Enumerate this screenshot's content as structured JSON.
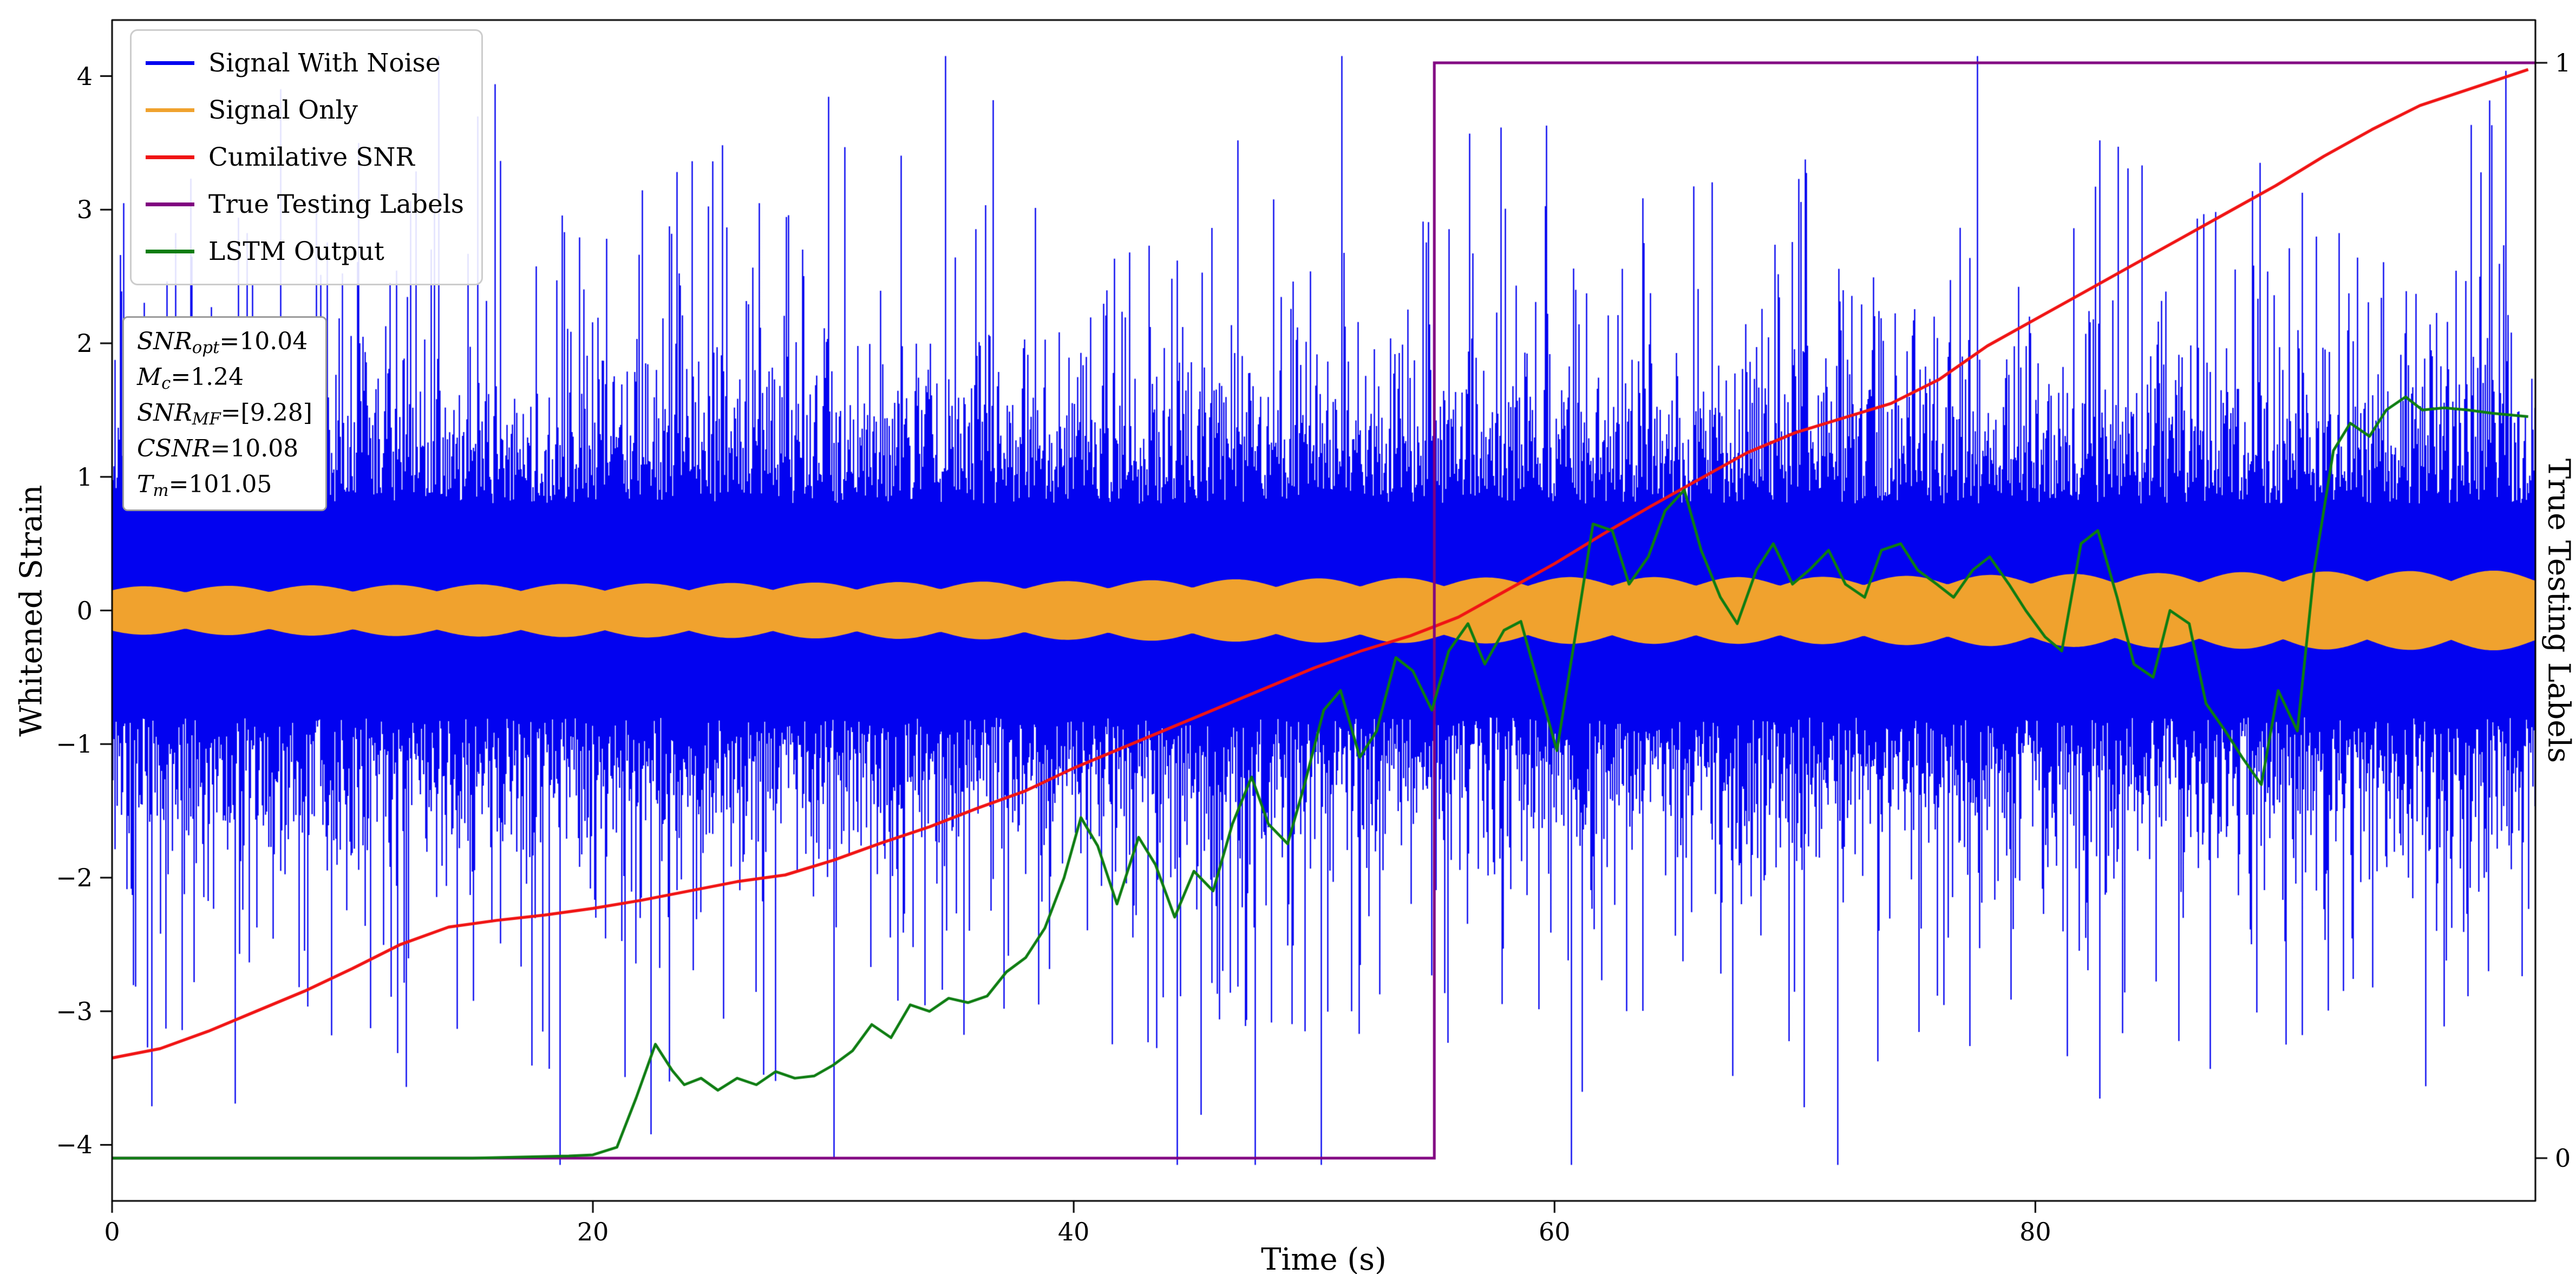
{
  "chart_data": {
    "type": "line",
    "title": "",
    "xlabel": "Time (s)",
    "ylabel_left": "Whitened Strain",
    "ylabel_right": "True Testing Labels",
    "xlim": [
      0,
      100.8
    ],
    "ylim_left": [
      -4.42,
      4.42
    ],
    "ylim_right_map": {
      "right0_at_left": -4.1,
      "right1_at_left": 4.1
    },
    "x_ticks": [
      0,
      20,
      40,
      60,
      80
    ],
    "y_ticks_left": [
      -4,
      -3,
      -2,
      -1,
      0,
      1,
      2,
      3,
      4
    ],
    "y_ticks_right": [
      0,
      1
    ],
    "grid": false,
    "legend_position": "upper left",
    "series": [
      {
        "name": "Signal With Noise",
        "color": "#0202f0",
        "type": "noise",
        "axis": "left",
        "seed": 1337,
        "base_amplitude": 0.8,
        "typical_amplitude": 1.4,
        "spike_probability": 0.09,
        "max_amplitude": 4.15
      },
      {
        "name": "Signal Only",
        "color": "#f0a22e",
        "type": "band",
        "axis": "left",
        "envelope": [
          [
            0,
            0.18
          ],
          [
            10,
            0.19
          ],
          [
            20,
            0.2
          ],
          [
            30,
            0.21
          ],
          [
            40,
            0.22
          ],
          [
            50,
            0.24
          ],
          [
            60,
            0.25
          ],
          [
            70,
            0.25
          ],
          [
            80,
            0.27
          ],
          [
            90,
            0.29
          ],
          [
            100.8,
            0.3
          ]
        ]
      },
      {
        "name": "Cumilative SNR",
        "color": "#f01414",
        "type": "line",
        "axis": "left",
        "points": [
          [
            0,
            -3.35
          ],
          [
            2,
            -3.28
          ],
          [
            4,
            -3.15
          ],
          [
            6,
            -3.0
          ],
          [
            8,
            -2.85
          ],
          [
            10,
            -2.68
          ],
          [
            12,
            -2.5
          ],
          [
            14,
            -2.37
          ],
          [
            16,
            -2.32
          ],
          [
            18,
            -2.28
          ],
          [
            20,
            -2.23
          ],
          [
            22,
            -2.17
          ],
          [
            24,
            -2.1
          ],
          [
            26,
            -2.03
          ],
          [
            28,
            -1.98
          ],
          [
            30,
            -1.87
          ],
          [
            32,
            -1.74
          ],
          [
            34,
            -1.62
          ],
          [
            36,
            -1.48
          ],
          [
            38,
            -1.35
          ],
          [
            40,
            -1.18
          ],
          [
            42,
            -1.03
          ],
          [
            44,
            -0.88
          ],
          [
            46,
            -0.73
          ],
          [
            48,
            -0.58
          ],
          [
            50,
            -0.43
          ],
          [
            52,
            -0.3
          ],
          [
            54,
            -0.19
          ],
          [
            56,
            -0.05
          ],
          [
            58,
            0.15
          ],
          [
            60,
            0.35
          ],
          [
            62,
            0.57
          ],
          [
            64,
            0.78
          ],
          [
            66,
            0.98
          ],
          [
            68,
            1.18
          ],
          [
            70,
            1.33
          ],
          [
            72,
            1.44
          ],
          [
            74,
            1.55
          ],
          [
            76,
            1.73
          ],
          [
            78,
            1.98
          ],
          [
            80,
            2.18
          ],
          [
            82,
            2.38
          ],
          [
            84,
            2.58
          ],
          [
            86,
            2.78
          ],
          [
            88,
            2.98
          ],
          [
            90,
            3.18
          ],
          [
            92,
            3.4
          ],
          [
            94,
            3.6
          ],
          [
            96,
            3.78
          ],
          [
            98,
            3.9
          ],
          [
            100.5,
            4.05
          ]
        ]
      },
      {
        "name": "True Testing Labels",
        "color": "#800080",
        "type": "step",
        "axis": "right",
        "step_time": 55,
        "low": 0,
        "high": 1
      },
      {
        "name": "LSTM Output",
        "color": "#0e7d12",
        "type": "line",
        "axis": "right",
        "points": [
          [
            0,
            0
          ],
          [
            5,
            0
          ],
          [
            10,
            0
          ],
          [
            15,
            0
          ],
          [
            19,
            0.002
          ],
          [
            20,
            0.003
          ],
          [
            21,
            0.01
          ],
          [
            21.8,
            0.055
          ],
          [
            22.6,
            0.104
          ],
          [
            23.3,
            0.08
          ],
          [
            23.8,
            0.067
          ],
          [
            24.5,
            0.073
          ],
          [
            25.2,
            0.062
          ],
          [
            26,
            0.073
          ],
          [
            26.8,
            0.067
          ],
          [
            27.6,
            0.079
          ],
          [
            28.4,
            0.073
          ],
          [
            29.2,
            0.075
          ],
          [
            30,
            0.085
          ],
          [
            30.8,
            0.098
          ],
          [
            31.6,
            0.122
          ],
          [
            32.4,
            0.11
          ],
          [
            33.2,
            0.14
          ],
          [
            34,
            0.134
          ],
          [
            34.8,
            0.146
          ],
          [
            35.6,
            0.142
          ],
          [
            36.4,
            0.148
          ],
          [
            37.2,
            0.17
          ],
          [
            38,
            0.183
          ],
          [
            38.8,
            0.21
          ],
          [
            39.6,
            0.256
          ],
          [
            40.3,
            0.311
          ],
          [
            41,
            0.285
          ],
          [
            41.8,
            0.232
          ],
          [
            42.7,
            0.293
          ],
          [
            43.4,
            0.268
          ],
          [
            44.2,
            0.22
          ],
          [
            45,
            0.262
          ],
          [
            45.8,
            0.244
          ],
          [
            46.6,
            0.305
          ],
          [
            47.4,
            0.348
          ],
          [
            48.1,
            0.305
          ],
          [
            48.9,
            0.287
          ],
          [
            49.6,
            0.341
          ],
          [
            50.4,
            0.409
          ],
          [
            51.1,
            0.427
          ],
          [
            51.9,
            0.366
          ],
          [
            52.6,
            0.39
          ],
          [
            53.4,
            0.457
          ],
          [
            54.1,
            0.445
          ],
          [
            54.9,
            0.409
          ],
          [
            55.6,
            0.463
          ],
          [
            56.4,
            0.488
          ],
          [
            57.1,
            0.451
          ],
          [
            57.9,
            0.482
          ],
          [
            58.6,
            0.49
          ],
          [
            59.4,
            0.427
          ],
          [
            60.1,
            0.372
          ],
          [
            60.9,
            0.482
          ],
          [
            61.6,
            0.579
          ],
          [
            62.4,
            0.573
          ],
          [
            63.1,
            0.524
          ],
          [
            63.9,
            0.549
          ],
          [
            64.6,
            0.591
          ],
          [
            65.4,
            0.61
          ],
          [
            66.1,
            0.555
          ],
          [
            66.9,
            0.512
          ],
          [
            67.6,
            0.488
          ],
          [
            68.4,
            0.537
          ],
          [
            69.1,
            0.561
          ],
          [
            69.9,
            0.524
          ],
          [
            70.6,
            0.537
          ],
          [
            71.4,
            0.555
          ],
          [
            72.1,
            0.524
          ],
          [
            72.9,
            0.512
          ],
          [
            73.6,
            0.555
          ],
          [
            74.4,
            0.561
          ],
          [
            75.1,
            0.537
          ],
          [
            75.9,
            0.524
          ],
          [
            76.6,
            0.512
          ],
          [
            77.4,
            0.537
          ],
          [
            78.1,
            0.549
          ],
          [
            78.9,
            0.524
          ],
          [
            79.6,
            0.5
          ],
          [
            80.4,
            0.476
          ],
          [
            81.1,
            0.463
          ],
          [
            81.9,
            0.561
          ],
          [
            82.6,
            0.573
          ],
          [
            83.4,
            0.512
          ],
          [
            84.1,
            0.451
          ],
          [
            84.9,
            0.439
          ],
          [
            85.6,
            0.5
          ],
          [
            86.4,
            0.488
          ],
          [
            87.1,
            0.415
          ],
          [
            87.9,
            0.39
          ],
          [
            88.6,
            0.366
          ],
          [
            89.4,
            0.341
          ],
          [
            90.1,
            0.427
          ],
          [
            90.9,
            0.39
          ],
          [
            91.6,
            0.537
          ],
          [
            92.4,
            0.646
          ],
          [
            93.1,
            0.671
          ],
          [
            93.9,
            0.659
          ],
          [
            94.6,
            0.683
          ],
          [
            95.4,
            0.695
          ],
          [
            96.1,
            0.683
          ],
          [
            97,
            0.685
          ],
          [
            98,
            0.683
          ],
          [
            99,
            0.68
          ],
          [
            100.5,
            0.677
          ]
        ]
      }
    ]
  },
  "annotation": {
    "lines": [
      {
        "base": "SNR",
        "sub": "opt",
        "rest": "=10.04"
      },
      {
        "base": "M",
        "sub": "c",
        "rest": "=1.24"
      },
      {
        "base": "SNR",
        "sub": "MF",
        "rest": "=[9.28]"
      },
      {
        "base": "CSNR",
        "sub": "",
        "rest": "=10.08"
      },
      {
        "base": "T",
        "sub": "m",
        "rest": "=101.05"
      }
    ]
  }
}
